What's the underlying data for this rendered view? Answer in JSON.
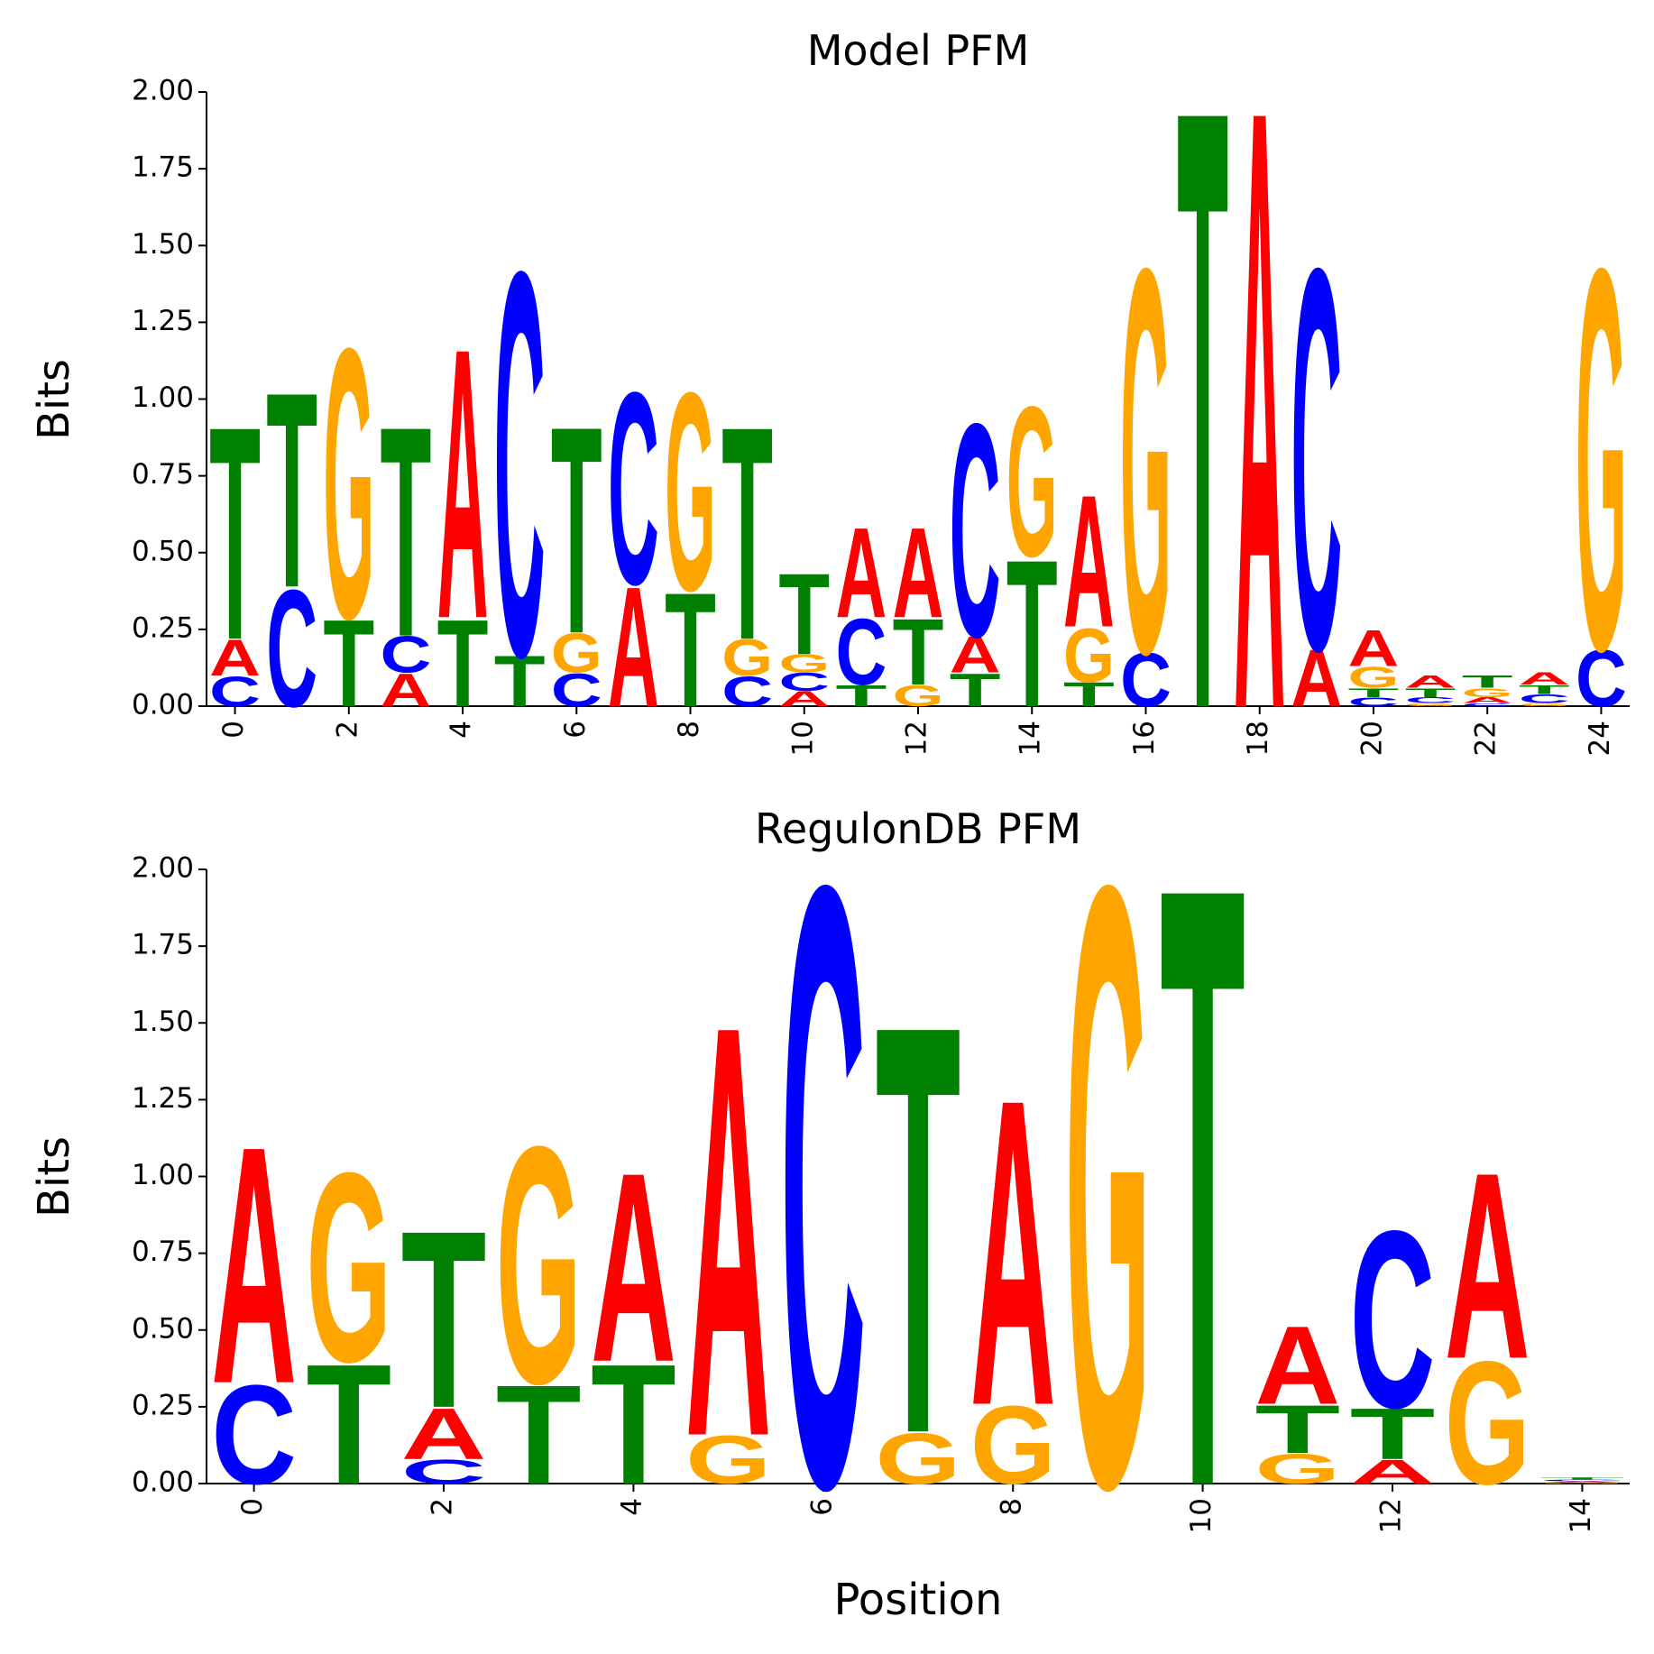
{
  "chart_data": [
    {
      "type": "logo",
      "title": "Model PFM",
      "ylabel": "Bits",
      "x": [
        0,
        1,
        2,
        3,
        4,
        5,
        6,
        7,
        8,
        9,
        10,
        11,
        12,
        13,
        14,
        15,
        16,
        17,
        18,
        19,
        20,
        21,
        22,
        23,
        24
      ],
      "xlim": [
        -0.5,
        24.5
      ],
      "xticks": [
        0,
        2,
        4,
        6,
        8,
        10,
        12,
        14,
        16,
        18,
        20,
        22,
        24
      ],
      "ylim": [
        0,
        2
      ],
      "yticks": [
        {
          "value": 0,
          "label": "0.00"
        },
        {
          "value": 0.25,
          "label": "0.25"
        },
        {
          "value": 0.5,
          "label": "0.50"
        },
        {
          "value": 0.75,
          "label": "0.75"
        },
        {
          "value": 1,
          "label": "1.00"
        },
        {
          "value": 1.25,
          "label": "1.25"
        },
        {
          "value": 1.5,
          "label": "1.50"
        },
        {
          "value": 1.75,
          "label": "1.75"
        },
        {
          "value": 2,
          "label": "2.00"
        }
      ],
      "series": [
        {
          "name": "A",
          "color": "#ff0000",
          "values": [
            0.12,
            0,
            0,
            0.11,
            0.9,
            0,
            0,
            0.4,
            0,
            0,
            0.05,
            0.3,
            0.3,
            0.12,
            0,
            0.44,
            0,
            0,
            2.0,
            0.19,
            0.12,
            0.04,
            0.02,
            0.04,
            0
          ]
        },
        {
          "name": "C",
          "color": "#0000ff",
          "values": [
            0.1,
            0.39,
            0,
            0.12,
            0,
            1.28,
            0.11,
            0.64,
            0,
            0.1,
            0.06,
            0.22,
            0,
            0.71,
            0,
            0,
            0.18,
            0,
            0,
            1.27,
            0.03,
            0.02,
            0.01,
            0.03,
            0.19
          ]
        },
        {
          "name": "G",
          "color": "#ffa500",
          "values": [
            0,
            0,
            0.9,
            0,
            0,
            0,
            0.13,
            0,
            0.66,
            0.12,
            0.06,
            0,
            0.07,
            0,
            0.5,
            0.18,
            1.28,
            0,
            0,
            0,
            0.07,
            0.01,
            0.03,
            0.01,
            1.27
          ]
        },
        {
          "name": "T",
          "color": "#008000",
          "values": [
            0.71,
            0.65,
            0.29,
            0.7,
            0.29,
            0.17,
            0.69,
            0,
            0.38,
            0.71,
            0.27,
            0.07,
            0.22,
            0.11,
            0.49,
            0.08,
            0,
            2.0,
            0,
            0,
            0.03,
            0.03,
            0.04,
            0.03,
            0
          ]
        }
      ]
    },
    {
      "type": "logo",
      "title": "RegulonDB PFM",
      "ylabel": "Bits",
      "xlabel": "Position",
      "x": [
        0,
        1,
        2,
        3,
        4,
        5,
        6,
        7,
        8,
        9,
        10,
        11,
        12,
        13,
        14
      ],
      "xlim": [
        -0.5,
        14.5
      ],
      "xticks": [
        0,
        2,
        4,
        6,
        8,
        10,
        12,
        14
      ],
      "ylim": [
        0,
        2
      ],
      "yticks": [
        {
          "value": 0,
          "label": "0.00"
        },
        {
          "value": 0.25,
          "label": "0.25"
        },
        {
          "value": 0.5,
          "label": "0.50"
        },
        {
          "value": 0.75,
          "label": "0.75"
        },
        {
          "value": 1,
          "label": "1.00"
        },
        {
          "value": 1.25,
          "label": "1.25"
        },
        {
          "value": 1.5,
          "label": "1.50"
        },
        {
          "value": 1.75,
          "label": "1.75"
        },
        {
          "value": 2,
          "label": "2.00"
        }
      ],
      "series": [
        {
          "name": "A",
          "color": "#ff0000",
          "values": [
            0.79,
            0,
            0.17,
            0,
            0.63,
            1.37,
            0,
            0,
            1.02,
            0,
            0,
            0.26,
            0.08,
            0.62,
            0.005
          ]
        },
        {
          "name": "C",
          "color": "#0000ff",
          "values": [
            0.33,
            0,
            0.08,
            0,
            0,
            0,
            2.0,
            0,
            0,
            0,
            0,
            0,
            0.59,
            0,
            0.005
          ]
        },
        {
          "name": "G",
          "color": "#ffa500",
          "values": [
            0,
            0.63,
            0,
            0.79,
            0,
            0.16,
            0,
            0.17,
            0.26,
            2.0,
            0,
            0.1,
            0,
            0.41,
            0.003
          ]
        },
        {
          "name": "T",
          "color": "#008000",
          "values": [
            0,
            0.4,
            0.59,
            0.33,
            0.4,
            0,
            0,
            1.36,
            0,
            0,
            2.0,
            0.16,
            0.17,
            0,
            0.007
          ]
        }
      ]
    }
  ]
}
